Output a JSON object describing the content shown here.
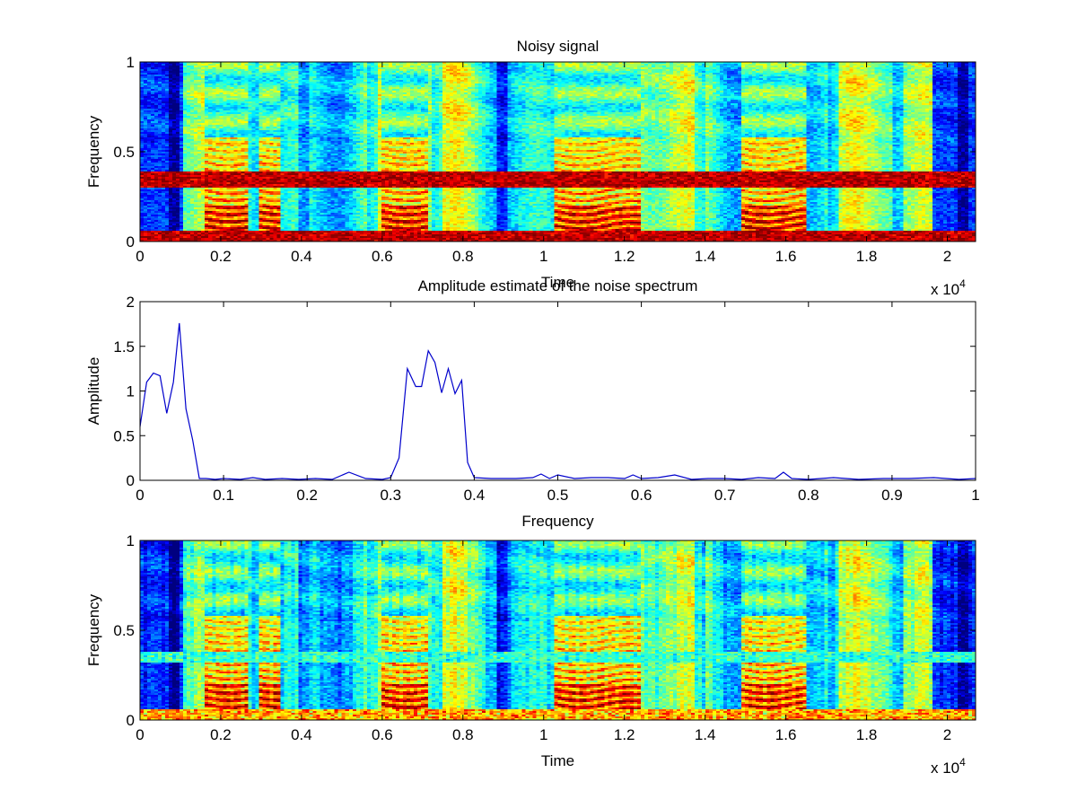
{
  "figure": {
    "background": "#ffffff",
    "axis_color": "#000000",
    "line_color": "#0000cc"
  },
  "chart_data": [
    {
      "type": "heatmap",
      "title": "Noisy signal",
      "xlabel": "Time",
      "ylabel": "Frequency",
      "xlim": [
        0,
        20700
      ],
      "ylim": [
        0,
        1
      ],
      "x_ticks": [
        0,
        2000,
        4000,
        6000,
        8000,
        10000,
        12000,
        14000,
        16000,
        18000,
        20000
      ],
      "x_tick_labels": [
        "0",
        "0.2",
        "0.4",
        "0.6",
        "0.8",
        "1",
        "1.2",
        "1.4",
        "1.6",
        "1.8",
        "2"
      ],
      "x_multiplier": "x 10",
      "x_multiplier_exp": "4",
      "y_ticks": [
        0,
        0.5,
        1
      ],
      "y_tick_labels": [
        "0",
        "0.5",
        "1"
      ],
      "colormap": "jet",
      "noise_bands": [
        [
          0.0,
          0.06
        ],
        [
          0.3,
          0.39
        ]
      ],
      "silent_regions": [
        [
          0,
          1100
        ],
        [
          19600,
          20700
        ]
      ],
      "strong_regions": [
        [
          1600,
          2700
        ],
        [
          2900,
          3500
        ],
        [
          6000,
          7100
        ],
        [
          10300,
          12400
        ],
        [
          14900,
          16500
        ]
      ]
    },
    {
      "type": "line",
      "title": "Amplitude estimate of the noise spectrum",
      "xlabel": "Frequency",
      "ylabel": "Amplitude",
      "xlim": [
        0,
        1
      ],
      "ylim": [
        0,
        2
      ],
      "x_ticks": [
        0,
        0.1,
        0.2,
        0.3,
        0.4,
        0.5,
        0.6,
        0.7,
        0.8,
        0.9,
        1
      ],
      "x_tick_labels": [
        "0",
        "0.1",
        "0.2",
        "0.3",
        "0.4",
        "0.5",
        "0.6",
        "0.7",
        "0.8",
        "0.9",
        "1"
      ],
      "y_ticks": [
        0,
        0.5,
        1,
        1.5,
        2
      ],
      "y_tick_labels": [
        "0",
        "0.5",
        "1",
        "1.5",
        "2"
      ],
      "series": [
        {
          "x": [
            0,
            0.008,
            0.016,
            0.024,
            0.032,
            0.04,
            0.047,
            0.055,
            0.063,
            0.071,
            0.079,
            0.09,
            0.1,
            0.12,
            0.135,
            0.15,
            0.17,
            0.19,
            0.21,
            0.23,
            0.25,
            0.27,
            0.29,
            0.3,
            0.31,
            0.32,
            0.33,
            0.337,
            0.345,
            0.353,
            0.361,
            0.369,
            0.377,
            0.385,
            0.392,
            0.4,
            0.42,
            0.45,
            0.47,
            0.48,
            0.49,
            0.5,
            0.52,
            0.54,
            0.56,
            0.58,
            0.59,
            0.6,
            0.62,
            0.64,
            0.66,
            0.68,
            0.7,
            0.72,
            0.74,
            0.76,
            0.77,
            0.78,
            0.8,
            0.83,
            0.86,
            0.89,
            0.92,
            0.95,
            0.98,
            1.0
          ],
          "y": [
            0.6,
            1.1,
            1.2,
            1.17,
            0.75,
            1.1,
            1.76,
            0.8,
            0.45,
            0.02,
            0.02,
            0.01,
            0.02,
            0.01,
            0.03,
            0.01,
            0.02,
            0.01,
            0.02,
            0.01,
            0.09,
            0.02,
            0.01,
            0.03,
            0.25,
            1.25,
            1.05,
            1.05,
            1.45,
            1.32,
            0.98,
            1.25,
            0.97,
            1.12,
            0.2,
            0.03,
            0.02,
            0.02,
            0.03,
            0.07,
            0.02,
            0.06,
            0.02,
            0.03,
            0.03,
            0.02,
            0.06,
            0.02,
            0.03,
            0.06,
            0.01,
            0.02,
            0.02,
            0.01,
            0.03,
            0.02,
            0.09,
            0.02,
            0.01,
            0.03,
            0.01,
            0.02,
            0.02,
            0.03,
            0.01,
            0.02
          ]
        }
      ]
    },
    {
      "type": "heatmap",
      "title": "",
      "xlabel": "Time",
      "ylabel": "Frequency",
      "xlim": [
        0,
        20700
      ],
      "ylim": [
        0,
        1
      ],
      "x_ticks": [
        0,
        2000,
        4000,
        6000,
        8000,
        10000,
        12000,
        14000,
        16000,
        18000,
        20000
      ],
      "x_tick_labels": [
        "0",
        "0.2",
        "0.4",
        "0.6",
        "0.8",
        "1",
        "1.2",
        "1.4",
        "1.6",
        "1.8",
        "2"
      ],
      "x_multiplier": "x 10",
      "x_multiplier_exp": "4",
      "y_ticks": [
        0,
        0.5,
        1
      ],
      "y_tick_labels": [
        "0",
        "0.5",
        "1"
      ],
      "colormap": "jet",
      "noise_bands": [],
      "silent_regions": [
        [
          0,
          1100
        ],
        [
          19600,
          20700
        ]
      ],
      "strong_regions": [
        [
          1600,
          2700
        ],
        [
          2900,
          3500
        ],
        [
          6000,
          7100
        ],
        [
          10300,
          12400
        ],
        [
          14900,
          16500
        ]
      ]
    }
  ]
}
